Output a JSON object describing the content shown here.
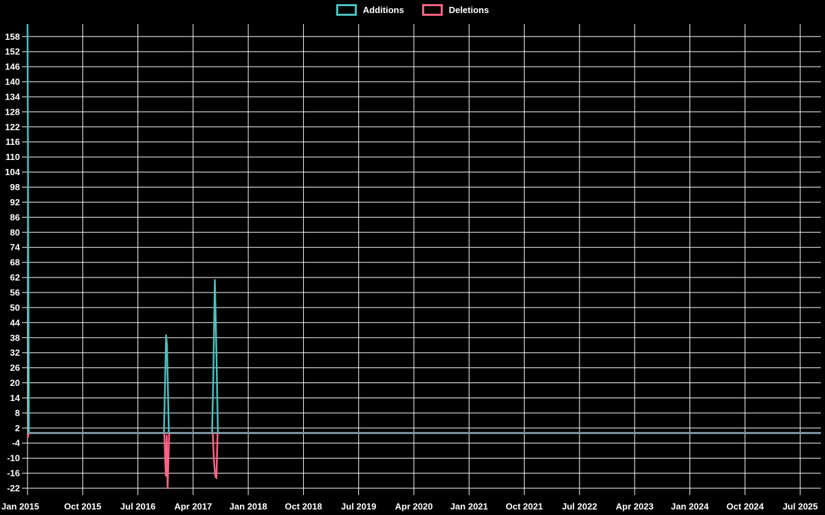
{
  "legend": {
    "items": [
      {
        "label": "Additions",
        "color": "#4bc0c0"
      },
      {
        "label": "Deletions",
        "color": "#ff6384"
      }
    ]
  },
  "chart_data": {
    "type": "line",
    "title": "",
    "background": "#000000",
    "grid_color": "#ffffff",
    "text_color": "#ffffff",
    "legend_position": "top",
    "grid": true,
    "x_ticks": [
      "Jan 2015",
      "Oct 2015",
      "Jul 2016",
      "Apr 2017",
      "Jan 2018",
      "Oct 2018",
      "Jul 2019",
      "Apr 2020",
      "Jan 2021",
      "Oct 2021",
      "Jul 2022",
      "Apr 2023",
      "Jan 2024",
      "Oct 2024",
      "Jul 2025"
    ],
    "months_per_x_tick": 9,
    "y_ticks": [
      158,
      152,
      146,
      140,
      134,
      128,
      122,
      116,
      110,
      104,
      98,
      92,
      86,
      80,
      74,
      68,
      62,
      56,
      50,
      44,
      38,
      32,
      26,
      20,
      14,
      8,
      2,
      -4,
      -10,
      -16,
      -22
    ],
    "ylim": [
      -22,
      163
    ],
    "xlabel": "",
    "ylabel": "",
    "zero_line": {
      "value": 0,
      "color": "#7e98a3"
    },
    "series": [
      {
        "name": "Additions",
        "color": "#4bc0c0",
        "baseline": 0,
        "spikes": [
          {
            "label": "Jan 2015",
            "peak": 163,
            "points": [
              [
                0,
                163
              ],
              [
                0.22,
                0
              ]
            ]
          },
          {
            "label": "Dec 2016",
            "peak": 39,
            "points": [
              [
                22.25,
                0
              ],
              [
                22.6,
                39
              ],
              [
                22.75,
                35
              ],
              [
                23.05,
                0
              ]
            ]
          },
          {
            "label": "Jul 2017",
            "peak": 61,
            "points": [
              [
                30.1,
                0
              ],
              [
                30.3,
                23
              ],
              [
                30.55,
                61
              ],
              [
                30.75,
                39
              ],
              [
                31.05,
                0
              ]
            ]
          }
        ]
      },
      {
        "name": "Deletions",
        "color": "#ff6384",
        "baseline": 0,
        "spikes": [
          {
            "label": "Jan 2015",
            "peak": -2,
            "points": [
              [
                0,
                -2
              ],
              [
                0.22,
                0
              ]
            ]
          },
          {
            "label": "Dec 2016",
            "peak": -22,
            "points": [
              [
                22.3,
                0
              ],
              [
                22.55,
                -17
              ],
              [
                22.7,
                -1
              ],
              [
                22.85,
                -22
              ],
              [
                23.1,
                0
              ]
            ]
          },
          {
            "label": "Jul 2017",
            "peak": -18,
            "points": [
              [
                30.2,
                0
              ],
              [
                30.4,
                -11
              ],
              [
                30.6,
                -17
              ],
              [
                30.8,
                -18
              ],
              [
                31.0,
                0
              ]
            ]
          }
        ]
      }
    ]
  }
}
